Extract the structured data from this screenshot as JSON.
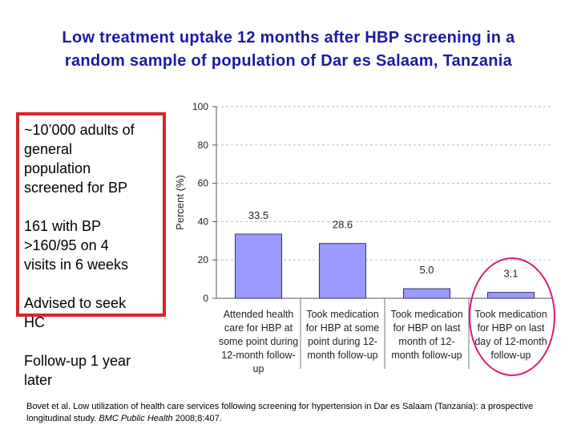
{
  "slide": {
    "title_line1": "Low treatment uptake 12 months after HBP screening in a",
    "title_line2": "random sample of population of Dar es Salaam, Tanzania",
    "steps": [
      [
        "~10’000 adults of",
        "general",
        "population",
        "screened for BP"
      ],
      [
        "161 with BP",
        ">160/95 on 4",
        "visits in 6 weeks"
      ],
      [
        "Advised to seek",
        "HC"
      ],
      [
        "Follow-up 1 year",
        "later"
      ]
    ],
    "citation": {
      "text": "Bovet et al. Low utilization of health care services following screening for hypertension in Dar es Salaam (Tanzania): a prospective longitudinal study.",
      "journal": "BMC Public Health",
      "ref": "2008;8:407."
    }
  },
  "colors": {
    "title": "#1a1aa6",
    "bar_fill": "#9999ff",
    "bar_stroke": "#333366",
    "box": "#d6262b",
    "ellipse": "#d81b7d"
  },
  "chart_data": {
    "type": "bar",
    "ylabel": "Percent (%)",
    "ylim": [
      0,
      100
    ],
    "yticks": [
      0,
      20,
      40,
      60,
      80,
      100
    ],
    "grid": "horizontal dashed",
    "categories": [
      [
        "Attended health",
        "care for HBP at",
        "some point during",
        "12-month follow-",
        "up"
      ],
      [
        "Took medication",
        "for HBP at some",
        "point during 12-",
        "month follow-up"
      ],
      [
        "Took medication",
        "for HBP on last",
        "month of 12-",
        "month follow-up"
      ],
      [
        "Took medication",
        "for HBP on last",
        "day of 12-month",
        "follow-up"
      ]
    ],
    "values": [
      33.5,
      28.6,
      5.0,
      3.1
    ],
    "value_labels": [
      "33.5",
      "28.6",
      "5.0",
      "3.1"
    ]
  }
}
